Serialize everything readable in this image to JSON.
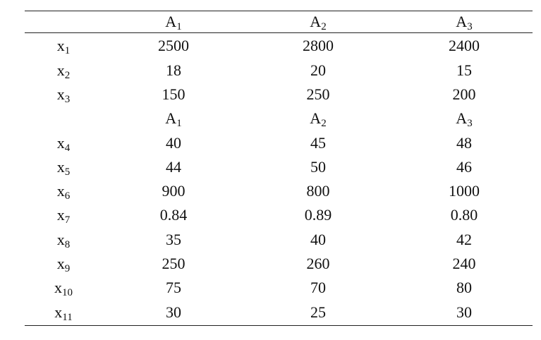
{
  "table": {
    "header": [
      {
        "base": "A",
        "sub": "1"
      },
      {
        "base": "A",
        "sub": "2"
      },
      {
        "base": "A",
        "sub": "3"
      }
    ],
    "rows_top": [
      {
        "label": {
          "base": "x",
          "sub": "1"
        },
        "values": [
          "2500",
          "2800",
          "2400"
        ]
      },
      {
        "label": {
          "base": "x",
          "sub": "2"
        },
        "values": [
          "18",
          "20",
          "15"
        ]
      },
      {
        "label": {
          "base": "x",
          "sub": "3"
        },
        "values": [
          "150",
          "250",
          "200"
        ]
      }
    ],
    "subheader": [
      {
        "base": "A",
        "sub": "1"
      },
      {
        "base": "A",
        "sub": "2"
      },
      {
        "base": "A",
        "sub": "3"
      }
    ],
    "rows_bottom": [
      {
        "label": {
          "base": "x",
          "sub": "4"
        },
        "values": [
          "40",
          "45",
          "48"
        ]
      },
      {
        "label": {
          "base": "x",
          "sub": "5"
        },
        "values": [
          "44",
          "50",
          "46"
        ]
      },
      {
        "label": {
          "base": "x",
          "sub": "6"
        },
        "values": [
          "900",
          "800",
          "1000"
        ]
      },
      {
        "label": {
          "base": "x",
          "sub": "7"
        },
        "values": [
          "0.84",
          "0.89",
          "0.80"
        ]
      },
      {
        "label": {
          "base": "x",
          "sub": "8"
        },
        "values": [
          "35",
          "40",
          "42"
        ]
      },
      {
        "label": {
          "base": "x",
          "sub": "9"
        },
        "values": [
          "250",
          "260",
          "240"
        ]
      },
      {
        "label": {
          "base": "x",
          "sub": "10"
        },
        "values": [
          "75",
          "70",
          "80"
        ]
      },
      {
        "label": {
          "base": "x",
          "sub": "11"
        },
        "values": [
          "30",
          "25",
          "30"
        ]
      }
    ]
  }
}
